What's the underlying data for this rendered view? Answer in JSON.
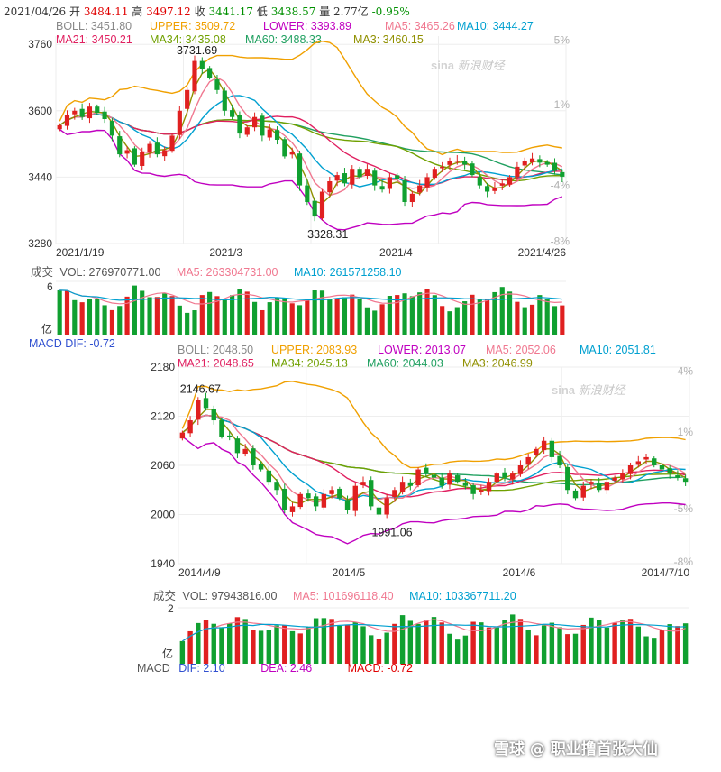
{
  "top": {
    "info": {
      "date": "2021/04/26",
      "open_label": "开",
      "open": "3484.11",
      "high_label": "高",
      "high": "3497.12",
      "close_label": "收",
      "close": "3441.17",
      "low_label": "低",
      "low": "3438.57",
      "vol_label": "量",
      "vol": "2.77亿",
      "change": "-0.95%"
    },
    "legend": [
      {
        "label": "BOLL: 3451.80",
        "color": "#888888"
      },
      {
        "label": "UPPER: 3509.72",
        "color": "#f0a000"
      },
      {
        "label": "LOWER: 3393.89",
        "color": "#c000c0"
      },
      {
        "label": "MA5: 3465.26",
        "color": "#f07890"
      },
      {
        "label": "MA10: 3444.27",
        "color": "#00a0d0"
      },
      {
        "label": "MA21: 3450.21",
        "color": "#e02060"
      },
      {
        "label": "MA34: 3435.08",
        "color": "#70a000"
      },
      {
        "label": "MA60: 3488.33",
        "color": "#20a060"
      },
      {
        "label": "MA3: 3460.15",
        "color": "#909000"
      }
    ],
    "y_ticks": [
      "3760",
      "3600",
      "3440",
      "3280"
    ],
    "pct_ticks": [
      "5%",
      "1%",
      "-4%",
      "-8%"
    ],
    "x_ticks": [
      "2021/1/19",
      "2021/3",
      "2021/4",
      "2021/4/26"
    ],
    "high_note": "3731.69",
    "low_note": "3328.31",
    "vol_legend": {
      "title": "成交",
      "vol": "VOL: 276970771.00",
      "ma5": "MA5: 263304731.00",
      "ma10": "MA10: 261571258.10"
    },
    "vol_top": "6",
    "vol_unit": "亿",
    "macd_cut": "MACD   DIF: -0.72"
  },
  "bottom": {
    "legend": [
      {
        "label": "BOLL: 2048.50",
        "color": "#888888"
      },
      {
        "label": "UPPER: 2083.93",
        "color": "#f0a000"
      },
      {
        "label": "LOWER: 2013.07",
        "color": "#c000c0"
      },
      {
        "label": "MA5: 2052.06",
        "color": "#f07890"
      },
      {
        "label": "MA10: 2051.81",
        "color": "#00a0d0"
      },
      {
        "label": "MA21: 2048.65",
        "color": "#e02060"
      },
      {
        "label": "MA34: 2045.13",
        "color": "#70a000"
      },
      {
        "label": "MA60: 2044.03",
        "color": "#20a060"
      },
      {
        "label": "MA3: 2046.99",
        "color": "#909000"
      }
    ],
    "y_ticks": [
      "2180",
      "2120",
      "2060",
      "2000",
      "1940"
    ],
    "pct_ticks": [
      "4%",
      "1%",
      "-5%",
      "-8%"
    ],
    "x_ticks": [
      "2014/4/9",
      "2014/5",
      "2014/6",
      "2014/7/10"
    ],
    "high_note": "2146.67",
    "low_note": "1991.06",
    "vol_legend": {
      "title": "成交",
      "vol": "VOL: 97943816.00",
      "ma5": "MA5: 101696118.40",
      "ma10": "MA10: 103367711.20"
    },
    "vol_top": "2",
    "vol_unit": "亿",
    "macd": {
      "title": "MACD",
      "dif": "DIF: 2.10",
      "dea": "DEA: 2.46",
      "macd": "MACD: -0.72"
    }
  },
  "watermark": {
    "logo": "sina",
    "text": "新浪财经"
  },
  "credit": "雪球 @ 职业撸首张大仙",
  "chart_data": [
    {
      "type": "candlestick",
      "title": "",
      "x_ticks": [
        "2021/1/19",
        "2021/3",
        "2021/4",
        "2021/4/26"
      ],
      "ylim": [
        3280,
        3780
      ],
      "ohlc_close_approx": [
        3565,
        3590,
        3600,
        3585,
        3610,
        3595,
        3580,
        3540,
        3495,
        3505,
        3470,
        3500,
        3520,
        3495,
        3505,
        3540,
        3600,
        3650,
        3720,
        3700,
        3680,
        3650,
        3600,
        3585,
        3545,
        3560,
        3585,
        3540,
        3555,
        3530,
        3490,
        3500,
        3420,
        3380,
        3345,
        3405,
        3430,
        3445,
        3425,
        3460,
        3440,
        3460,
        3420,
        3410,
        3440,
        3435,
        3380,
        3400,
        3420,
        3440,
        3460,
        3465,
        3480,
        3480,
        3470,
        3445,
        3420,
        3405,
        3415,
        3425,
        3440,
        3465,
        3480,
        3485,
        3475,
        3470,
        3455,
        3441
      ],
      "series": [
        {
          "name": "UPPER",
          "end": 3509.72
        },
        {
          "name": "BOLL",
          "end": 3451.8
        },
        {
          "name": "LOWER",
          "end": 3393.89
        },
        {
          "name": "MA5",
          "end": 3465.26
        },
        {
          "name": "MA10",
          "end": 3444.27
        },
        {
          "name": "MA21",
          "end": 3450.21
        },
        {
          "name": "MA34",
          "end": 3435.08
        },
        {
          "name": "MA60",
          "end": 3488.33
        },
        {
          "name": "MA3",
          "end": 3460.15
        }
      ],
      "annotations": [
        {
          "text": "3731.69",
          "kind": "high"
        },
        {
          "text": "3328.31",
          "kind": "low"
        }
      ],
      "volume_last": 276970771.0
    },
    {
      "type": "candlestick",
      "title": "",
      "x_ticks": [
        "2014/4/9",
        "2014/5",
        "2014/6",
        "2014/7/10"
      ],
      "ylim": [
        1940,
        2180
      ],
      "ohlc_close_approx": [
        2100,
        2115,
        2140,
        2130,
        2115,
        2095,
        2095,
        2075,
        2080,
        2060,
        2055,
        2040,
        2030,
        2005,
        2010,
        2025,
        2020,
        2010,
        2025,
        2030,
        2020,
        2005,
        2035,
        2040,
        2010,
        2000,
        2020,
        2030,
        2040,
        2035,
        2055,
        2050,
        2045,
        2035,
        2050,
        2040,
        2035,
        2025,
        2030,
        2040,
        2050,
        2045,
        2050,
        2060,
        2070,
        2080,
        2090,
        2070,
        2060,
        2030,
        2020,
        2035,
        2040,
        2030,
        2040,
        2045,
        2050,
        2060,
        2065,
        2070,
        2060,
        2055,
        2050,
        2045,
        2040
      ],
      "series": [
        {
          "name": "UPPER",
          "end": 2083.93
        },
        {
          "name": "BOLL",
          "end": 2048.5
        },
        {
          "name": "LOWER",
          "end": 2013.07
        },
        {
          "name": "MA5",
          "end": 2052.06
        },
        {
          "name": "MA10",
          "end": 2051.81
        },
        {
          "name": "MA21",
          "end": 2048.65
        },
        {
          "name": "MA34",
          "end": 2045.13
        },
        {
          "name": "MA60",
          "end": 2044.03
        },
        {
          "name": "MA3",
          "end": 2046.99
        }
      ],
      "annotations": [
        {
          "text": "2146.67",
          "kind": "high"
        },
        {
          "text": "1991.06",
          "kind": "low"
        }
      ],
      "volume_last": 97943816.0,
      "macd": {
        "dif": 2.1,
        "dea": 2.46,
        "macd": -0.72
      }
    }
  ]
}
